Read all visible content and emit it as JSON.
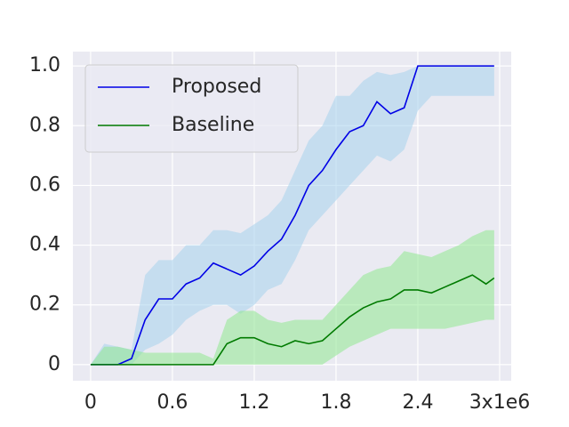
{
  "chart_data": {
    "type": "line",
    "x": [
      0,
      0.1,
      0.2,
      0.3,
      0.4,
      0.5,
      0.6,
      0.7,
      0.8,
      0.9,
      1.0,
      1.1,
      1.2,
      1.3,
      1.4,
      1.5,
      1.6,
      1.7,
      1.8,
      1.9,
      2.0,
      2.1,
      2.2,
      2.3,
      2.4,
      2.5,
      2.6,
      2.7,
      2.8,
      2.9,
      2.96
    ],
    "series": [
      {
        "name": "Proposed",
        "color": "#0000e6",
        "band_color": "#a6d2ec",
        "values": [
          0,
          0,
          0,
          0.02,
          0.15,
          0.22,
          0.22,
          0.27,
          0.29,
          0.34,
          0.32,
          0.3,
          0.33,
          0.38,
          0.42,
          0.5,
          0.6,
          0.65,
          0.72,
          0.78,
          0.8,
          0.88,
          0.84,
          0.86,
          1.0,
          1.0,
          1.0,
          1.0,
          1.0,
          1.0,
          1.0
        ],
        "lower": [
          0,
          0,
          0,
          0,
          0.05,
          0.07,
          0.1,
          0.15,
          0.18,
          0.2,
          0.2,
          0.17,
          0.2,
          0.25,
          0.27,
          0.35,
          0.45,
          0.5,
          0.55,
          0.6,
          0.65,
          0.7,
          0.68,
          0.72,
          0.85,
          0.9,
          0.9,
          0.9,
          0.9,
          0.9,
          0.9
        ],
        "upper": [
          0,
          0.07,
          0.06,
          0.05,
          0.3,
          0.35,
          0.35,
          0.4,
          0.4,
          0.45,
          0.45,
          0.44,
          0.47,
          0.5,
          0.55,
          0.65,
          0.75,
          0.8,
          0.9,
          0.9,
          0.95,
          0.98,
          0.97,
          0.98,
          1.0,
          1.0,
          1.0,
          1.0,
          1.0,
          1.0,
          1.0
        ]
      },
      {
        "name": "Baseline",
        "color": "#007a00",
        "band_color": "#90e890",
        "values": [
          0,
          0,
          0,
          0,
          0,
          0,
          0,
          0,
          0,
          0,
          0.07,
          0.09,
          0.09,
          0.07,
          0.06,
          0.08,
          0.07,
          0.08,
          0.12,
          0.16,
          0.19,
          0.21,
          0.22,
          0.25,
          0.25,
          0.24,
          0.26,
          0.28,
          0.3,
          0.27,
          0.29
        ],
        "lower": [
          0,
          0,
          0,
          0,
          0,
          0,
          0,
          0,
          0,
          0,
          0,
          0,
          0,
          0,
          0,
          0,
          0,
          0,
          0.03,
          0.06,
          0.08,
          0.1,
          0.12,
          0.12,
          0.12,
          0.12,
          0.12,
          0.13,
          0.14,
          0.15,
          0.15
        ],
        "upper": [
          0,
          0.06,
          0.06,
          0.05,
          0.04,
          0.04,
          0.04,
          0.04,
          0.04,
          0.02,
          0.15,
          0.18,
          0.18,
          0.15,
          0.14,
          0.15,
          0.15,
          0.15,
          0.2,
          0.25,
          0.3,
          0.32,
          0.33,
          0.38,
          0.37,
          0.36,
          0.38,
          0.4,
          0.43,
          0.45,
          0.45
        ]
      }
    ],
    "xlim": [
      -0.13,
      3.085
    ],
    "ylim": [
      -0.054,
      1.048
    ],
    "xticks": [
      0,
      0.6,
      1.2,
      1.8,
      2.4,
      {
        "value": 3,
        "label": "3x1e6"
      }
    ],
    "yticks": [
      0,
      0.2,
      0.4,
      0.6,
      0.8,
      {
        "value": 1.0,
        "label": "1.0"
      }
    ],
    "grid": true,
    "legend": "upper-left"
  }
}
